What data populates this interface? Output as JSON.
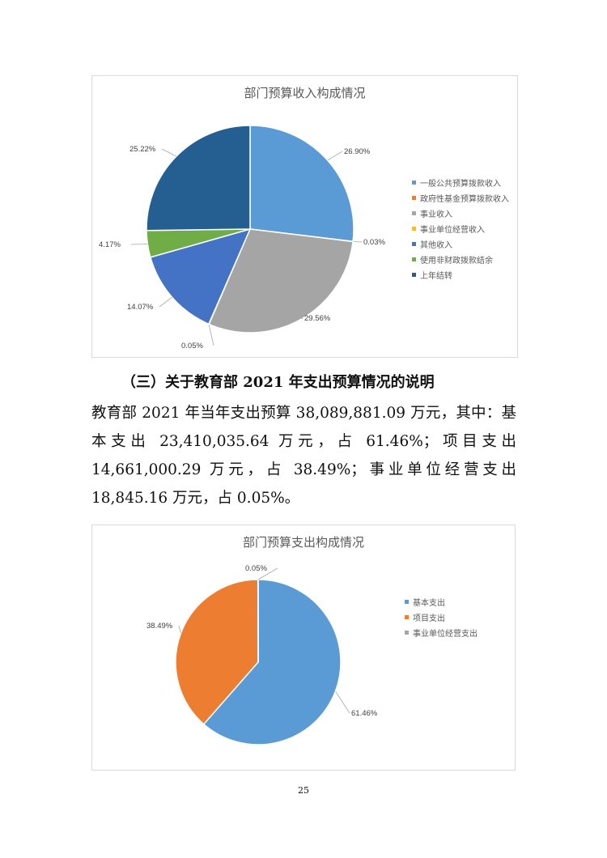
{
  "chart_data": [
    {
      "type": "pie",
      "title": "部门预算收入构成情况",
      "categories": [
        "一般公共预算拨款收入",
        "政府性基金预算拨款收入",
        "事业收入",
        "事业单位经营收入",
        "其他收入",
        "使用非财政拨款结余",
        "上年结转"
      ],
      "values": [
        26.9,
        0.03,
        29.56,
        0.05,
        14.07,
        4.17,
        25.22
      ],
      "labels": [
        "26.90%",
        "0.03%",
        "29.56%",
        "0.05%",
        "14.07%",
        "4.17%",
        "25.22%"
      ],
      "colors": [
        "#5b9bd5",
        "#ed7d31",
        "#a5a5a5",
        "#ffc000",
        "#4472c4",
        "#70ad47",
        "#255e91"
      ],
      "legend": "right"
    },
    {
      "type": "pie",
      "title": "部门预算支出构成情况",
      "categories": [
        "基本支出",
        "项目支出",
        "事业单位经营支出"
      ],
      "values": [
        61.46,
        38.49,
        0.05
      ],
      "labels": [
        "61.46%",
        "38.49%",
        "0.05%"
      ],
      "colors": [
        "#5b9bd5",
        "#ed7d31",
        "#a5a5a5"
      ],
      "legend": "right"
    }
  ],
  "text": {
    "heading": "（三）关于教育部 2021 年支出预算情况的说明",
    "paragraph": "教育部 2021 年当年支出预算 38,089,881.09 万元，其中：基本支出 23,410,035.64 万元，占 61.46%；项目支出 14,661,000.29 万元，占 38.49%；事业单位经营支出 18,845.16 万元，占 0.05%。",
    "page_number": "25"
  }
}
